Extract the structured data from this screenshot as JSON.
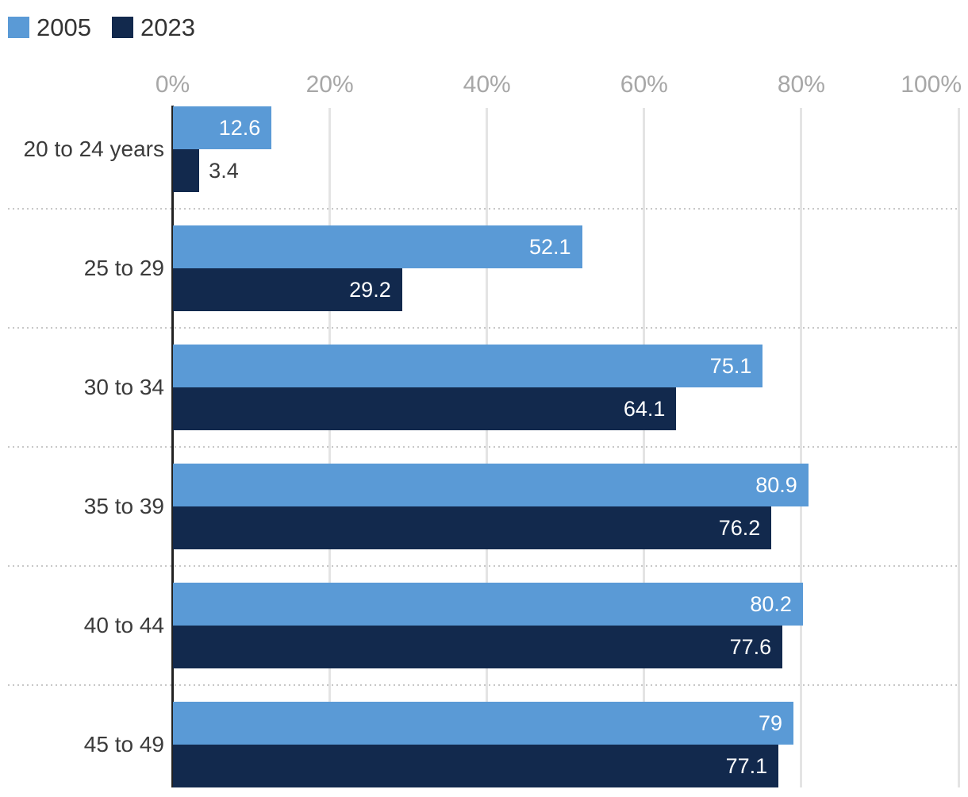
{
  "legend": {
    "items": [
      {
        "label": "2005"
      },
      {
        "label": "2023"
      }
    ]
  },
  "chart_data": {
    "type": "bar",
    "orientation": "horizontal",
    "title": "",
    "categories": [
      "20 to 24 years",
      "25 to 29",
      "30 to 34",
      "35 to 39",
      "40 to 44",
      "45 to 49"
    ],
    "series": [
      {
        "name": "2005",
        "color": "#5A9AD6",
        "values": [
          12.6,
          52.1,
          75.1,
          80.9,
          80.2,
          79
        ]
      },
      {
        "name": "2023",
        "color": "#12294D",
        "values": [
          3.4,
          29.2,
          64.1,
          76.2,
          77.6,
          77.1
        ]
      }
    ],
    "x_axis": {
      "ticks": [
        "0%",
        "20%",
        "40%",
        "60%",
        "80%",
        "100%"
      ],
      "tick_values": [
        0,
        20,
        40,
        60,
        80,
        100
      ],
      "min": 0,
      "max": 100
    },
    "grid": "vertical",
    "row_separators": "dotted",
    "legend_position": "top-left",
    "value_labels": "shown"
  },
  "styles": {
    "background": "#FFFFFF",
    "series_2005": "#5A9AD6",
    "series_2023": "#12294D",
    "legend_text": "#333333",
    "axis_text": "#A7A7A7",
    "category_text": "#3B3B3B",
    "value_label_inside": "#FFFFFF",
    "value_label_outside": "#3B3B3B",
    "gridline": "#E4E4E4",
    "separator_dots": "#C8C8C8",
    "axis_line": "#222222"
  }
}
